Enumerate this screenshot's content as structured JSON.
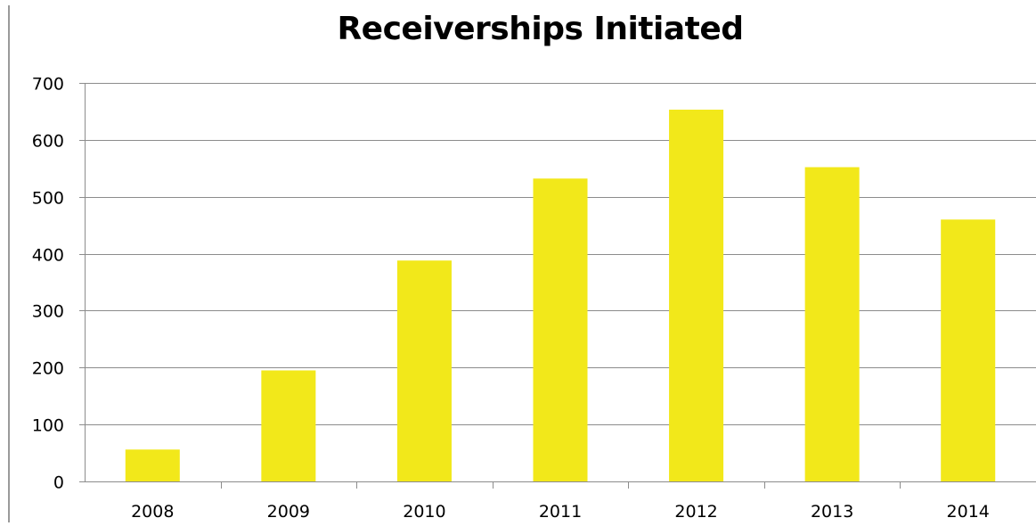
{
  "chart_data": {
    "type": "bar",
    "title": "Receiverships Initiated",
    "xlabel": "",
    "ylabel": "",
    "categories": [
      "2008",
      "2009",
      "2010",
      "2011",
      "2012",
      "2013",
      "2014"
    ],
    "values": [
      56,
      195,
      388,
      532,
      653,
      552,
      460
    ],
    "ylim": [
      0,
      700
    ],
    "yticks": [
      0,
      100,
      200,
      300,
      400,
      500,
      600,
      700
    ],
    "grid": true,
    "legend": "none",
    "bar_color": "#f2e81a"
  }
}
